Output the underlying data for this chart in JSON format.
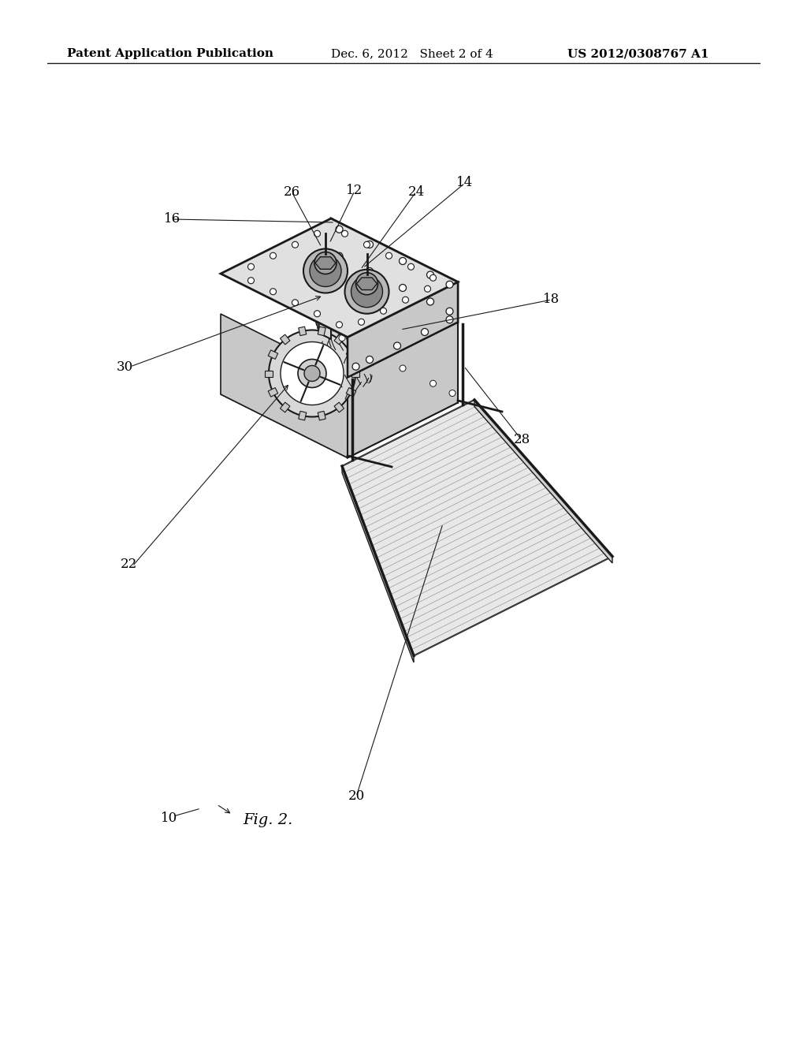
{
  "background_color": "#ffffff",
  "header_left": "Patent Application Publication",
  "header_center": "Dec. 6, 2012   Sheet 2 of 4",
  "header_right": "US 2012/0308767 A1",
  "figure_label": "Fig. 2.",
  "line_color": "#1a1a1a",
  "text_color": "#000000",
  "header_fontsize": 11,
  "label_fontsize": 12,
  "fig_label_fontsize": 14
}
